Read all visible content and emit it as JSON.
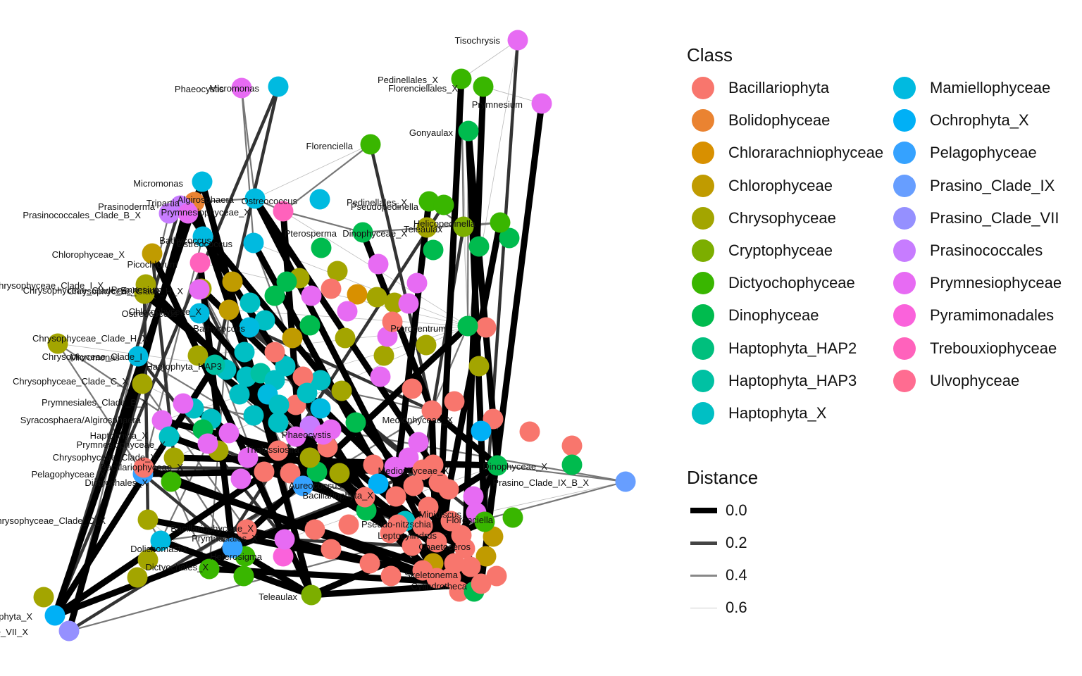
{
  "legend": {
    "class_title": "Class",
    "classes": [
      {
        "label": "Bacillariophyta",
        "color": "#F8766D"
      },
      {
        "label": "Bolidophyceae",
        "color": "#EA8331"
      },
      {
        "label": "Chlorarachniophyceae",
        "color": "#D89000"
      },
      {
        "label": "Chlorophyceae",
        "color": "#C09B00"
      },
      {
        "label": "Chrysophyceae",
        "color": "#A3A500"
      },
      {
        "label": "Cryptophyceae",
        "color": "#7CAE00"
      },
      {
        "label": "Dictyochophyceae",
        "color": "#39B600"
      },
      {
        "label": "Dinophyceae",
        "color": "#00BB4E"
      },
      {
        "label": "Haptophyta_HAP2",
        "color": "#00BF7D"
      },
      {
        "label": "Haptophyta_HAP3",
        "color": "#00C1A3"
      },
      {
        "label": "Haptophyta_X",
        "color": "#00BFC4"
      },
      {
        "label": "Mamiellophyceae",
        "color": "#00BAE0"
      },
      {
        "label": "Ochrophyta_X",
        "color": "#00B0F6"
      },
      {
        "label": "Pelagophyceae",
        "color": "#35A2FF"
      },
      {
        "label": "Prasino_Clade_IX",
        "color": "#679EFF"
      },
      {
        "label": "Prasino_Clade_VII",
        "color": "#9590FF"
      },
      {
        "label": "Prasinococcales",
        "color": "#C77CFF"
      },
      {
        "label": "Prymnesiophyceae",
        "color": "#E76BF3"
      },
      {
        "label": "Pyramimonadales",
        "color": "#FA62DB"
      },
      {
        "label": "Trebouxiophyceae",
        "color": "#FF62BC"
      },
      {
        "label": "Ulvophyceae",
        "color": "#FF6C91"
      }
    ],
    "distance_title": "Distance",
    "distances": [
      {
        "label": "0.0"
      },
      {
        "label": "0.2"
      },
      {
        "label": "0.4"
      },
      {
        "label": "0.6"
      }
    ]
  },
  "network": {
    "nodes": [
      {
        "label": "Tisochrysis",
        "color": "#E76BF3"
      },
      {
        "label": "Pedinellales_X",
        "color": "#39B600"
      },
      {
        "label": "Florenciellales_X",
        "color": "#39B600"
      },
      {
        "label": "Prymnesium",
        "color": "#E76BF3"
      },
      {
        "label": "Phaeocystis",
        "color": "#E76BF3"
      },
      {
        "label": "Micromonas",
        "color": "#00BAE0"
      },
      {
        "label": "Gonyaulax",
        "color": "#00BB4E"
      },
      {
        "label": "Florenciella",
        "color": "#39B600"
      },
      {
        "label": "Micromonas",
        "color": "#00BAE0"
      },
      {
        "label": "Algirosphaera",
        "color": "#EA8331"
      },
      {
        "label": "Tripartia",
        "color": "#C77CFF"
      },
      {
        "label": "Prasinoderma",
        "color": "#C77CFF"
      },
      {
        "label": "Prymnesiophyceae_X",
        "color": "#E76BF3"
      },
      {
        "label": "Ostreococcus",
        "color": "#00BAE0"
      },
      {
        "label": "Pedinellales_X",
        "color": "#39B600"
      },
      {
        "label": "Pseudopedinella",
        "color": "#39B600"
      },
      {
        "label": "Prasinococcales_Clade_B_X",
        "color": "#C77CFF"
      },
      {
        "label": "Pterosperma",
        "color": "#FF62BC"
      },
      {
        "label": "Dinophyceae_X",
        "color": "#00BB4E"
      },
      {
        "label": "Helicopedinella",
        "color": "#39B600"
      },
      {
        "label": "Teleaulax",
        "color": "#7CAE00"
      },
      {
        "label": "Bathycoccus",
        "color": "#00BAE0"
      },
      {
        "label": "Ostreococcus",
        "color": "#00BAE0"
      },
      {
        "label": "Chlorophyceae_X",
        "color": "#C09B00"
      },
      {
        "label": "Picochlorum",
        "color": "#FF62BC"
      },
      {
        "label": "Chrysophyceae_Clade_I_X",
        "color": "#A3A500"
      },
      {
        "label": "Chrysophyceae_Clade_E_X",
        "color": "#A3A500"
      },
      {
        "label": "Chrysophyceae_Clade_H_X",
        "color": "#A3A500"
      },
      {
        "label": "Prymnesium",
        "color": "#E76BF3"
      },
      {
        "label": "Chlorophyceae_X",
        "color": "#C09B00"
      },
      {
        "label": "Ostreococcus",
        "color": "#00BAE0"
      },
      {
        "label": "Prorocentrum",
        "color": "#00BB4E"
      },
      {
        "label": "Bathycoccus",
        "color": "#00BAE0"
      },
      {
        "label": "Chrysophyceae_Clade_H_X",
        "color": "#A3A500"
      },
      {
        "label": "Micromonas",
        "color": "#00BAE0"
      },
      {
        "label": "Chrysophyceae_Clade_I",
        "color": "#A3A500"
      },
      {
        "label": "Haptophyta_HAP3",
        "color": "#00C1A3"
      },
      {
        "label": "Chrysophyceae_Clade_C_X",
        "color": "#A3A500"
      },
      {
        "label": "Prymnesiales_Clade_B_X",
        "color": "#E76BF3"
      },
      {
        "label": "Syracosphaera/Algirosphaera",
        "color": "#E76BF3"
      },
      {
        "label": "Haptophyta_X",
        "color": "#00BFC4"
      },
      {
        "label": "Prymnesiophyceae_X",
        "color": "#E76BF3"
      },
      {
        "label": "Chrysophyceae_Clade_X",
        "color": "#A3A500"
      },
      {
        "label": "Pelagophyceae_X",
        "color": "#35A2FF"
      },
      {
        "label": "Bacillariophyceae_X",
        "color": "#F8766D"
      },
      {
        "label": "Dictyochales_X",
        "color": "#39B600"
      },
      {
        "label": "Phaeocystis",
        "color": "#E76BF3"
      },
      {
        "label": "Aureococcus",
        "color": "#35A2FF"
      },
      {
        "label": "Thalassiosira",
        "color": "#F8766D"
      },
      {
        "label": "Mediophyceae_X",
        "color": "#F8766D"
      },
      {
        "label": "Prasino_Clade_IX_B_X",
        "color": "#679EFF"
      },
      {
        "label": "Florenciella",
        "color": "#39B600"
      },
      {
        "label": "Bacillariophyta_X",
        "color": "#F8766D"
      },
      {
        "label": "Chrysophyceae_Clade_C_X",
        "color": "#A3A500"
      },
      {
        "label": "Dolichomastix",
        "color": "#00BAE0"
      },
      {
        "label": "Bacillariophyceae_X",
        "color": "#F8766D"
      },
      {
        "label": "Prymnesiales_X",
        "color": "#E76BF3"
      },
      {
        "label": "Heterosigma",
        "color": "#35A2FF"
      },
      {
        "label": "Dictyochales_X",
        "color": "#39B600"
      },
      {
        "label": "Leptocylindrus",
        "color": "#F8766D"
      },
      {
        "label": "Pseudo-nitzschia",
        "color": "#F8766D"
      },
      {
        "label": "Teleaulax",
        "color": "#7CAE00"
      },
      {
        "label": "Ochrophyta_X",
        "color": "#00B0F6"
      },
      {
        "label": "Prasino_Clade_VII_X",
        "color": "#9590FF"
      },
      {
        "label": "Dinophyceae_X",
        "color": "#00BB4E"
      },
      {
        "label": "Mediophyceae_X",
        "color": "#F8766D"
      },
      {
        "label": "Chaetoceros",
        "color": "#F8766D"
      },
      {
        "label": "Minidiscus",
        "color": "#F8766D"
      },
      {
        "label": "Skeletonema",
        "color": "#F8766D"
      },
      {
        "label": "Cylindrotheca",
        "color": "#F8766D"
      }
    ]
  }
}
